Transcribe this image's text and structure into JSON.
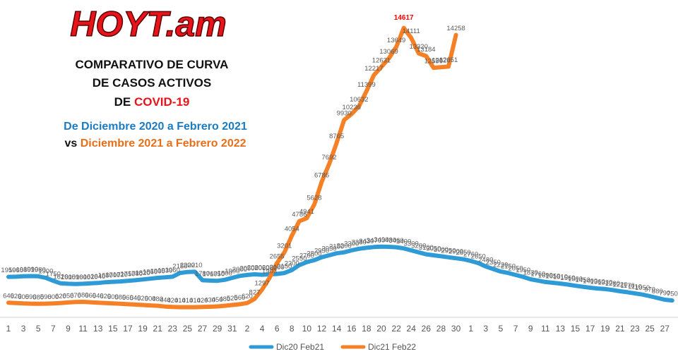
{
  "chart_data": {
    "type": "line",
    "logo": "HOYT.am",
    "title": [
      [
        "COMPARATIVO DE CURVA"
      ],
      [
        "DE CASOS ACTIVOS"
      ],
      [
        "DE ",
        "COVID-19"
      ]
    ],
    "subtitle": [
      [
        "De Diciembre 2020 a Febrero 2021"
      ],
      [
        "vs ",
        "Diciembre 2021 a Febrero 2022"
      ]
    ],
    "categories": [
      "1",
      null,
      "3",
      null,
      "5",
      null,
      "7",
      null,
      "9",
      null,
      "11",
      null,
      "13",
      null,
      "15",
      null,
      "17",
      null,
      "19",
      null,
      "21",
      null,
      "23",
      null,
      "25",
      null,
      "27",
      null,
      "29",
      null,
      "31",
      null,
      "2",
      null,
      "4",
      null,
      "6",
      null,
      "8",
      null,
      "10",
      null,
      "12",
      null,
      "14",
      null,
      "16",
      null,
      "18",
      null,
      "20",
      null,
      "22",
      null,
      "24",
      null,
      "26",
      null,
      "28",
      null,
      "30",
      null,
      "1",
      null,
      "3",
      null,
      "5",
      null,
      "7",
      null,
      "9",
      null,
      "11",
      null,
      "13",
      null,
      "15",
      null,
      "17",
      null,
      "19",
      null,
      "21",
      null,
      "23",
      null,
      "25",
      null,
      "27",
      null
    ],
    "series": [
      {
        "name": "Dic20 Feb21",
        "color": "#2e9bd6",
        "values": [
          1950,
          1960,
          1980,
          1990,
          1980,
          1900,
          1750,
          1620,
          1600,
          1590,
          1600,
          1620,
          1640,
          1680,
          1700,
          1720,
          1750,
          1780,
          1820,
          1860,
          1900,
          1930,
          1960,
          2150,
          2200,
          2210,
          1780,
          1760,
          1750,
          1800,
          1900,
          2000,
          2050,
          2080,
          2060,
          2080,
          2100,
          2150,
          2300,
          2550,
          2700,
          2800,
          2950,
          3050,
          3150,
          3200,
          3300,
          3380,
          3430,
          3470,
          3490,
          3480,
          3460,
          3400,
          3300,
          3200,
          3100,
          3050,
          3000,
          2950,
          2900,
          2850,
          2760,
          2650,
          2480,
          2350,
          2220,
          2150,
          2050,
          1950,
          1830,
          1760,
          1690,
          1650,
          1610,
          1560,
          1500,
          1450,
          1400,
          1360,
          1330,
          1280,
          1220,
          1170,
          1110,
          1050,
          970,
          880,
          790,
          750
        ]
      },
      {
        "name": "Dic21 Feb22",
        "color": "#f58025",
        "values": [
          640,
          620,
          600,
          590,
          580,
          590,
          600,
          620,
          650,
          670,
          680,
          660,
          640,
          620,
          600,
          580,
          560,
          540,
          520,
          500,
          480,
          440,
          420,
          410,
          410,
          410,
          420,
          430,
          450,
          480,
          520,
          560,
          620,
          827,
          1297,
          1903,
          2655,
          3201,
          4054,
          4786,
          4941,
          5628,
          6786,
          7692,
          8765,
          9930,
          10236,
          10632,
          11399,
          12217,
          12631,
          13069,
          13649,
          14617,
          14111,
          13320,
          13184,
          12590,
          12620,
          12651,
          14258,
          null,
          null,
          null,
          null,
          null,
          null,
          null,
          null,
          null,
          null,
          null,
          null,
          null,
          null,
          null,
          null,
          null,
          null,
          null,
          null,
          null,
          null,
          null,
          null,
          null,
          null,
          null,
          null,
          null
        ]
      }
    ],
    "highlight": {
      "series": 1,
      "index": 53,
      "color": "#ff0000"
    },
    "ylim": [
      0,
      16000
    ],
    "legend": "bottom"
  }
}
